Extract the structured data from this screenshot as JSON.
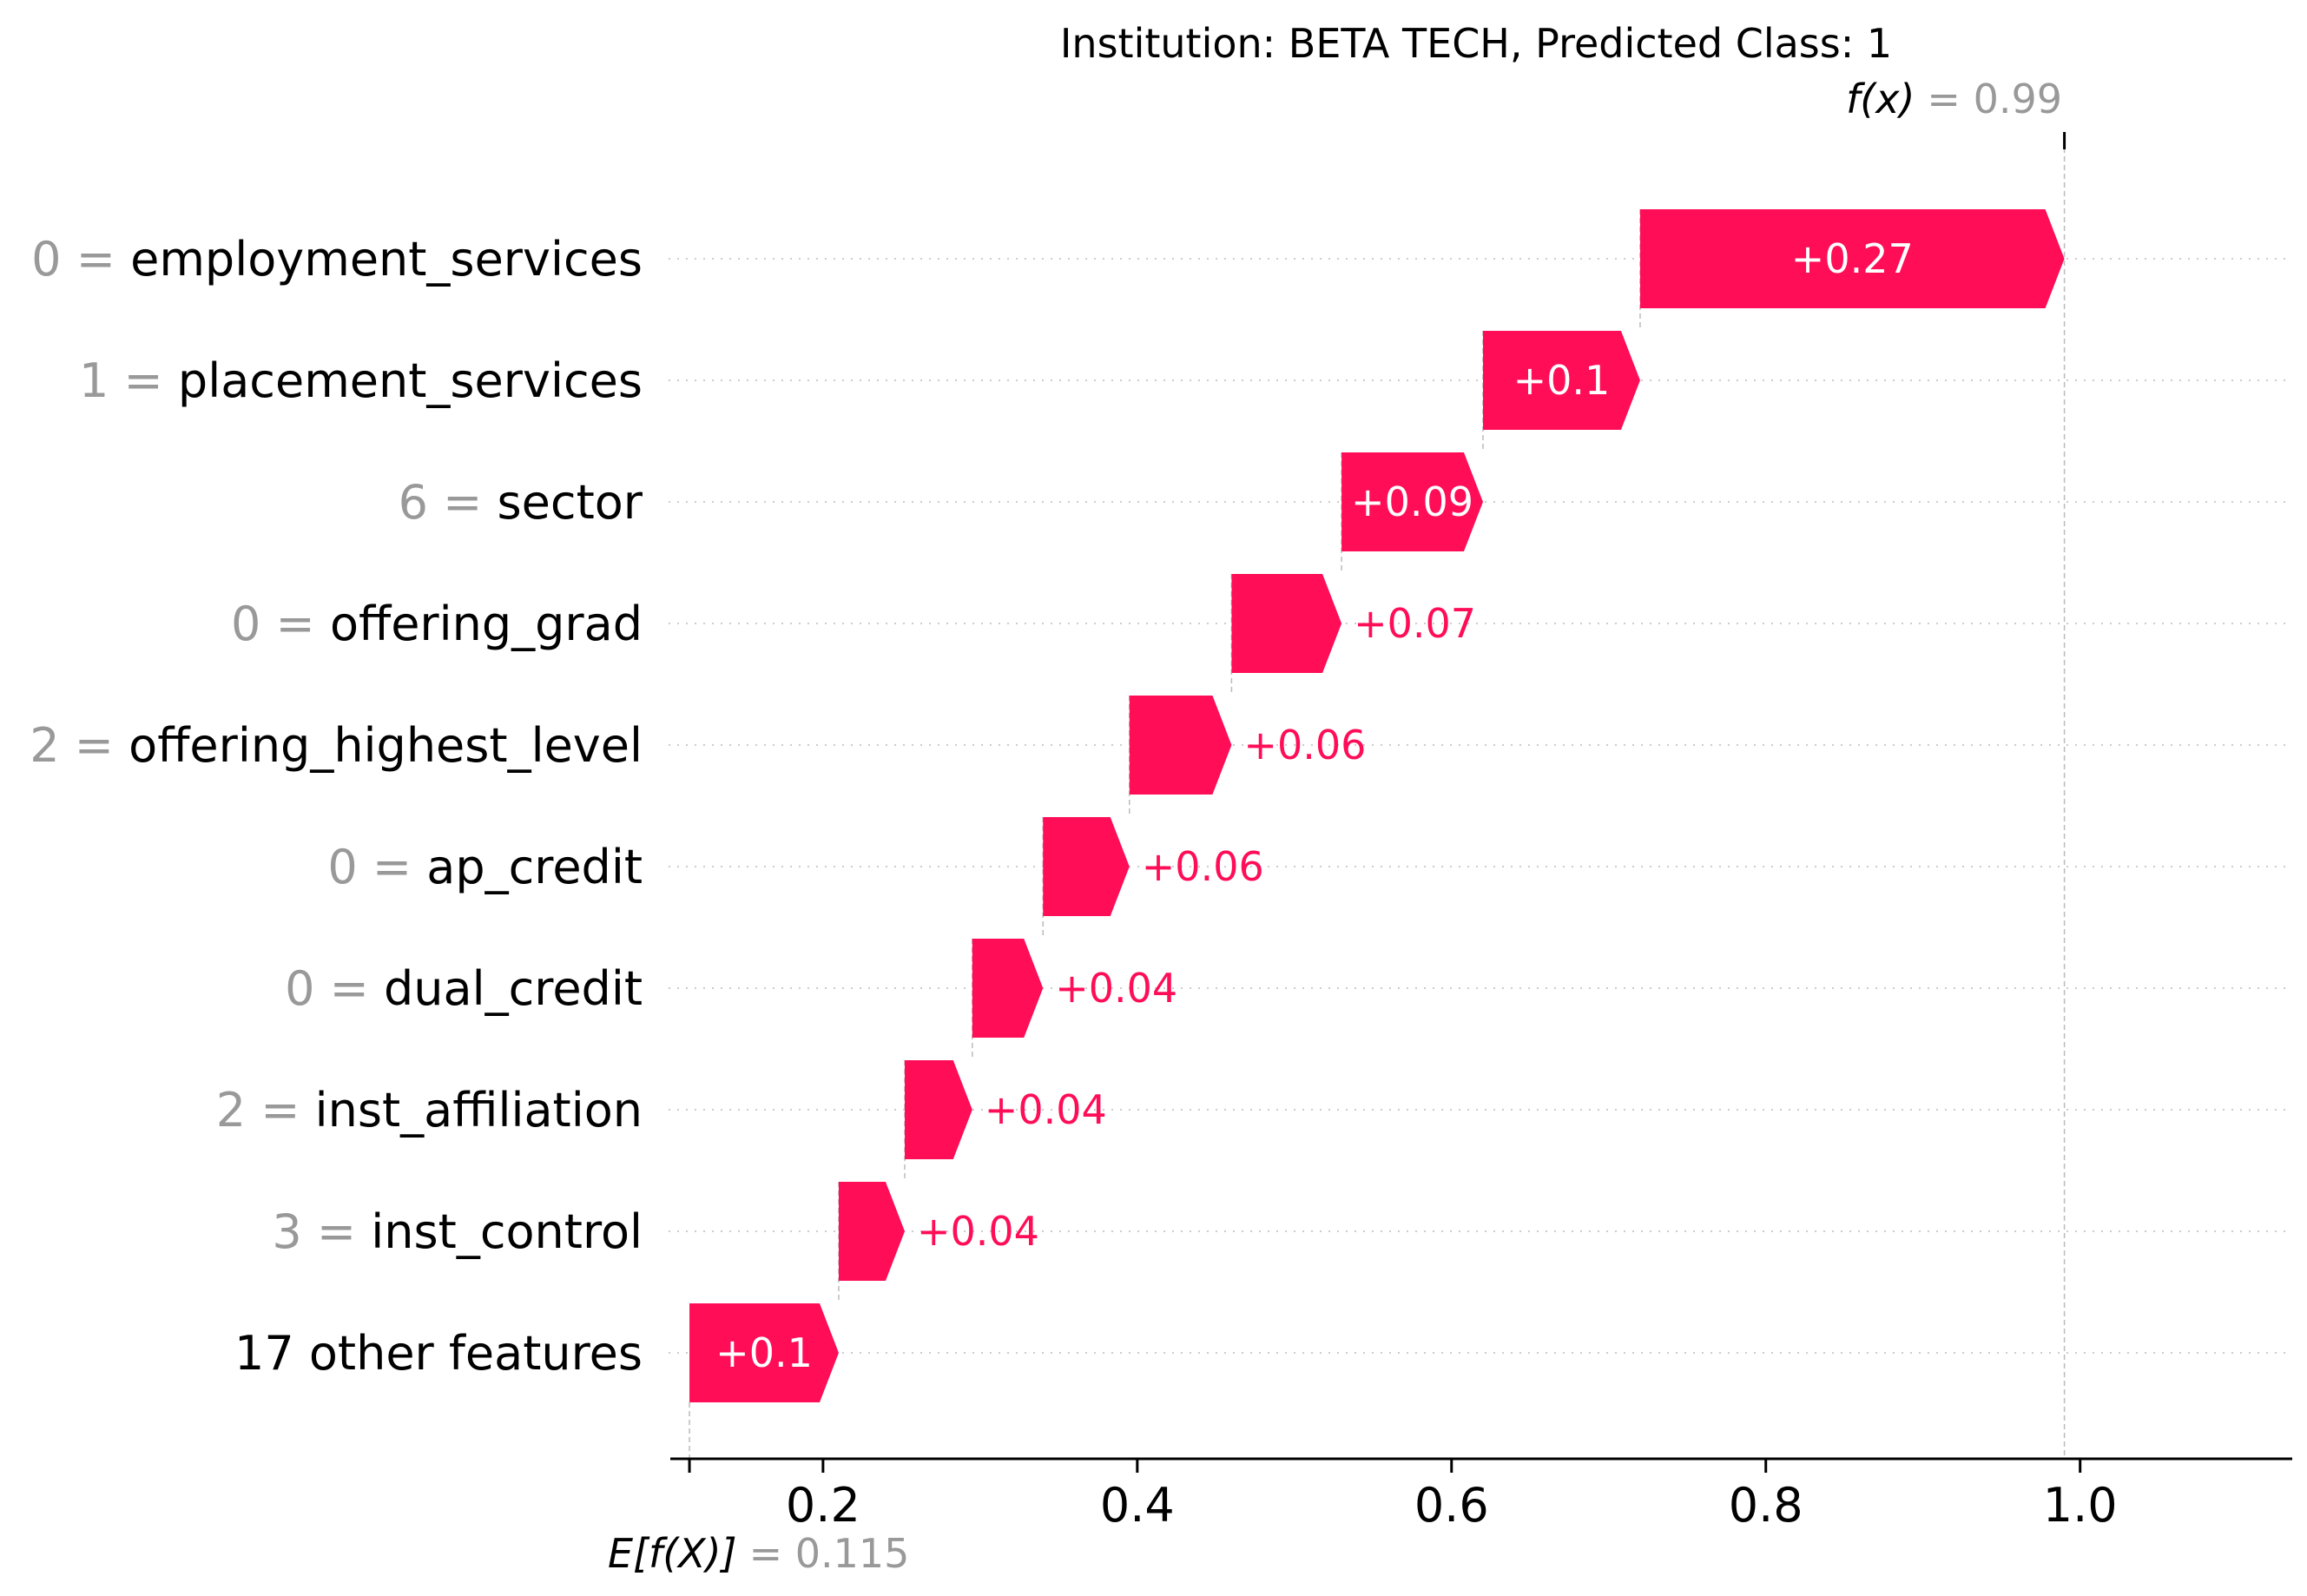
{
  "chart_data": {
    "type": "bar",
    "subtype": "shap-waterfall",
    "title": "Institution: BETA TECH, Predicted Class: 1",
    "xlim": [
      0.11,
      1.135
    ],
    "x_ticks": [
      0.2,
      0.4,
      0.6,
      0.8,
      1.0
    ],
    "x_tick_labels": [
      "0.2",
      "0.4",
      "0.6",
      "0.8",
      "1.0"
    ],
    "grid": "horizontal dotted row guides",
    "base_value": 0.115,
    "base_label": "E[f(X)]",
    "base_value_text": "= 0.115",
    "output_value": 0.99,
    "output_label": "f(x)",
    "output_value_text": "= 0.99",
    "positive_color": "#ff0d57",
    "features": [
      {
        "value": "0 =",
        "name": "employment_services",
        "start": 0.72,
        "end": 0.99,
        "contribution": 0.27,
        "label": "+0.27"
      },
      {
        "value": "1 =",
        "name": "placement_services",
        "start": 0.62,
        "end": 0.72,
        "contribution": 0.1,
        "label": "+0.1"
      },
      {
        "value": "6 =",
        "name": "sector",
        "start": 0.53,
        "end": 0.62,
        "contribution": 0.09,
        "label": "+0.09"
      },
      {
        "value": "0 =",
        "name": "offering_grad",
        "start": 0.46,
        "end": 0.53,
        "contribution": 0.07,
        "label": "+0.07"
      },
      {
        "value": "2 =",
        "name": "offering_highest_level",
        "start": 0.395,
        "end": 0.46,
        "contribution": 0.06,
        "label": "+0.06"
      },
      {
        "value": "0 =",
        "name": "ap_credit",
        "start": 0.34,
        "end": 0.395,
        "contribution": 0.06,
        "label": "+0.06"
      },
      {
        "value": "0 =",
        "name": "dual_credit",
        "start": 0.295,
        "end": 0.34,
        "contribution": 0.04,
        "label": "+0.04"
      },
      {
        "value": "2 =",
        "name": "inst_affiliation",
        "start": 0.252,
        "end": 0.295,
        "contribution": 0.04,
        "label": "+0.04"
      },
      {
        "value": "3 =",
        "name": "inst_control",
        "start": 0.21,
        "end": 0.252,
        "contribution": 0.04,
        "label": "+0.04"
      },
      {
        "value": "",
        "name": "17 other features",
        "start": 0.115,
        "end": 0.21,
        "contribution": 0.1,
        "label": "+0.1"
      }
    ]
  }
}
